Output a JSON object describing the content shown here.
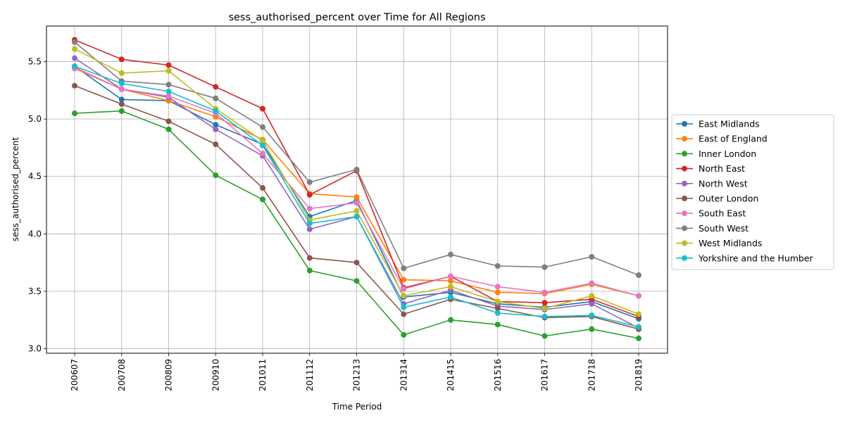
{
  "chart_data": {
    "type": "line",
    "title": "sess_authorised_percent over Time for All Regions",
    "xlabel": "Time Period",
    "ylabel": "sess_authorised_percent",
    "categories": [
      "200607",
      "200708",
      "200809",
      "200910",
      "201011",
      "201112",
      "201213",
      "201314",
      "201415",
      "201516",
      "201617",
      "201718",
      "201819"
    ],
    "ylim": [
      2.96,
      5.81
    ],
    "yticks": [
      "3.0",
      "3.5",
      "4.0",
      "4.5",
      "5.0",
      "5.5"
    ],
    "grid": true,
    "legend_position": "right",
    "series": [
      {
        "name": "East Midlands",
        "color": "#1f77b4",
        "values": [
          5.46,
          5.17,
          5.16,
          4.95,
          4.78,
          4.15,
          4.29,
          3.45,
          3.49,
          3.39,
          3.36,
          3.41,
          3.26
        ]
      },
      {
        "name": "East of England",
        "color": "#ff7f0e",
        "values": [
          5.45,
          5.26,
          5.16,
          5.02,
          4.82,
          4.35,
          4.32,
          3.6,
          3.59,
          3.49,
          3.48,
          3.56,
          3.46
        ]
      },
      {
        "name": "Inner London",
        "color": "#2ca02c",
        "values": [
          5.05,
          5.07,
          4.91,
          4.51,
          4.3,
          3.68,
          3.59,
          3.12,
          3.25,
          3.21,
          3.11,
          3.17,
          3.09
        ]
      },
      {
        "name": "North East",
        "color": "#d62728",
        "values": [
          5.69,
          5.52,
          5.47,
          5.28,
          5.09,
          4.34,
          4.55,
          3.53,
          3.63,
          3.41,
          3.4,
          3.43,
          3.28
        ]
      },
      {
        "name": "North West",
        "color": "#9467bd",
        "values": [
          5.53,
          5.26,
          5.19,
          4.91,
          4.68,
          4.04,
          4.15,
          3.39,
          3.51,
          3.37,
          3.34,
          3.39,
          3.18
        ]
      },
      {
        "name": "Outer London",
        "color": "#8c564b",
        "values": [
          5.29,
          5.13,
          4.98,
          4.78,
          4.4,
          3.79,
          3.75,
          3.3,
          3.43,
          3.35,
          3.27,
          3.28,
          3.17
        ]
      },
      {
        "name": "South East",
        "color": "#e377c2",
        "values": [
          5.44,
          5.26,
          5.2,
          5.05,
          4.7,
          4.22,
          4.27,
          3.52,
          3.63,
          3.54,
          3.49,
          3.57,
          3.46
        ]
      },
      {
        "name": "South West",
        "color": "#7f7f7f",
        "values": [
          5.67,
          5.33,
          5.3,
          5.18,
          4.93,
          4.45,
          4.56,
          3.7,
          3.82,
          3.72,
          3.71,
          3.8,
          3.64
        ]
      },
      {
        "name": "West Midlands",
        "color": "#bcbd22",
        "values": [
          5.61,
          5.4,
          5.42,
          5.09,
          4.81,
          4.12,
          4.2,
          3.46,
          3.54,
          3.41,
          3.35,
          3.46,
          3.3
        ]
      },
      {
        "name": "Yorkshire and the Humber",
        "color": "#17becf",
        "values": [
          5.46,
          5.31,
          5.24,
          5.07,
          4.77,
          4.09,
          4.15,
          3.36,
          3.45,
          3.31,
          3.28,
          3.29,
          3.19
        ]
      }
    ]
  }
}
